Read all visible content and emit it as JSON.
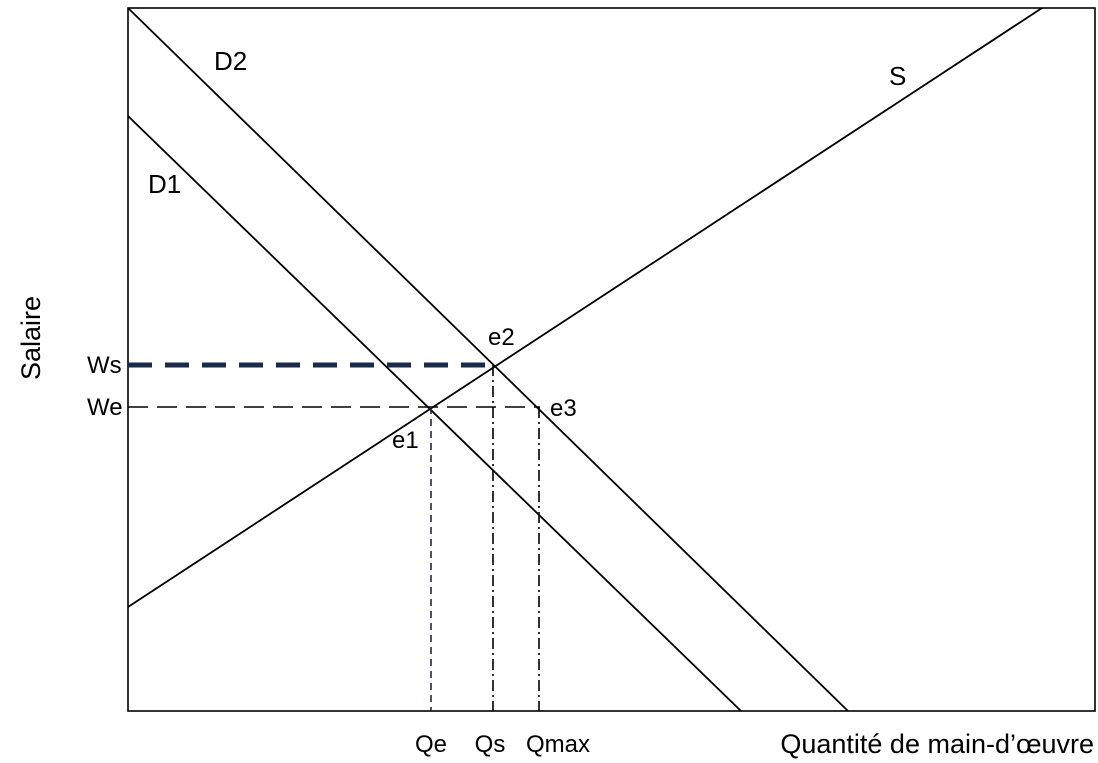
{
  "diagram": {
    "axes": {
      "x_title": "Quantité de main-d’œuvre",
      "y_title": "Salaire"
    },
    "curves": {
      "d1": "D1",
      "d2": "D2",
      "s": "S"
    },
    "points": {
      "e1": "e1",
      "e2": "e2",
      "e3": "e3"
    },
    "y_ticks": {
      "ws": "Ws",
      "we": "We"
    },
    "x_ticks": {
      "qe": "Qe",
      "qs": "Qs",
      "qmax": "Qmax"
    },
    "colors": {
      "line": "#000000",
      "highlight": "#1a2a4a"
    }
  }
}
